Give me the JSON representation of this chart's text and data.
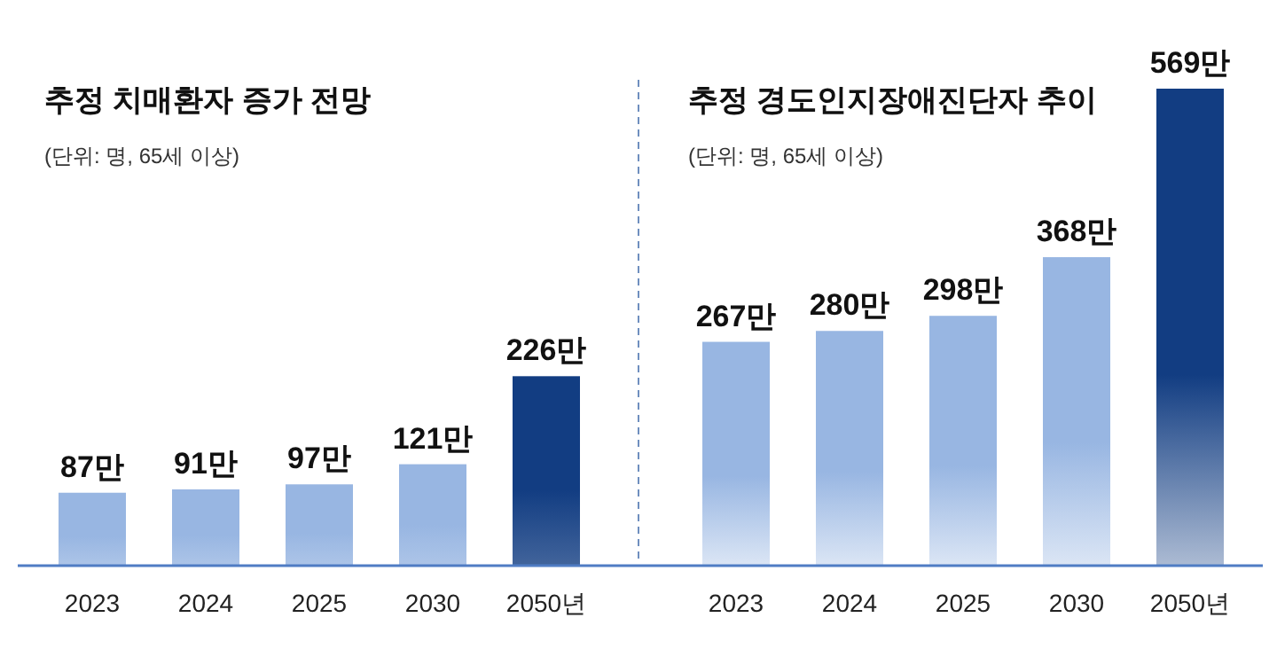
{
  "chart_data": [
    {
      "type": "bar",
      "title": "추정 치매환자 증가 전망",
      "subtitle": "(단위: 명, 65세 이상)",
      "categories": [
        "2023",
        "2024",
        "2025",
        "2030",
        "2050년"
      ],
      "values": [
        87,
        91,
        97,
        121,
        226
      ],
      "value_labels": [
        "87만",
        "91만",
        "97만",
        "121만",
        "226만"
      ],
      "colors": [
        "#98b6e2",
        "#98b6e2",
        "#98b6e2",
        "#98b6e2",
        "#123d82"
      ]
    },
    {
      "type": "bar",
      "title": "추정 경도인지장애진단자 추이",
      "subtitle": "(단위: 명, 65세 이상)",
      "categories": [
        "2023",
        "2024",
        "2025",
        "2030",
        "2050년"
      ],
      "values": [
        267,
        280,
        298,
        368,
        569
      ],
      "value_labels": [
        "267만",
        "280만",
        "298만",
        "368만",
        "569만"
      ],
      "colors": [
        "#98b6e2",
        "#98b6e2",
        "#98b6e2",
        "#98b6e2",
        "#123d82"
      ]
    }
  ]
}
